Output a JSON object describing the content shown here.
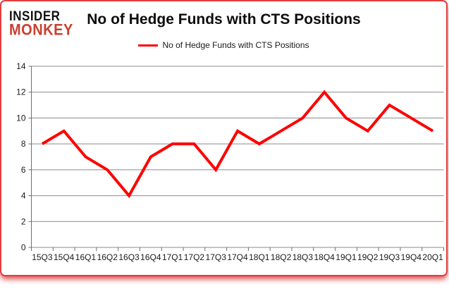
{
  "logo": {
    "line1": "INSIDER",
    "line2": "MONKEY"
  },
  "header": {
    "title": "No of Hedge Funds with CTS Positions"
  },
  "legend": {
    "label": "No of Hedge Funds with CTS Positions"
  },
  "colors": {
    "line_red": "#fe0000",
    "logo_black": "#111111",
    "logo_red": "#c84130",
    "grid": "#8a8a8a",
    "axis": "#6e6e6e",
    "border_red": "#e23d3d",
    "text": "#1a1a1a"
  },
  "chart_data": {
    "type": "line",
    "title": "No of Hedge Funds with CTS Positions",
    "categories": [
      "15Q3",
      "15Q4",
      "16Q1",
      "16Q2",
      "16Q3",
      "16Q4",
      "17Q1",
      "17Q2",
      "17Q3",
      "17Q4",
      "18Q1",
      "18Q2",
      "18Q3",
      "18Q4",
      "19Q1",
      "19Q2",
      "19Q3",
      "19Q4",
      "20Q1"
    ],
    "series": [
      {
        "name": "No of Hedge Funds with CTS Positions",
        "color": "#fe0000",
        "values": [
          8,
          9,
          7,
          6,
          4,
          7,
          8,
          8,
          6,
          9,
          8,
          9,
          10,
          12,
          10,
          9,
          11,
          10,
          9
        ]
      }
    ],
    "xlabel": "",
    "ylabel": "",
    "ylim": [
      0,
      14
    ],
    "yticks": [
      0,
      2,
      4,
      6,
      8,
      10,
      12,
      14
    ],
    "grid": true,
    "legend_position": "top"
  }
}
